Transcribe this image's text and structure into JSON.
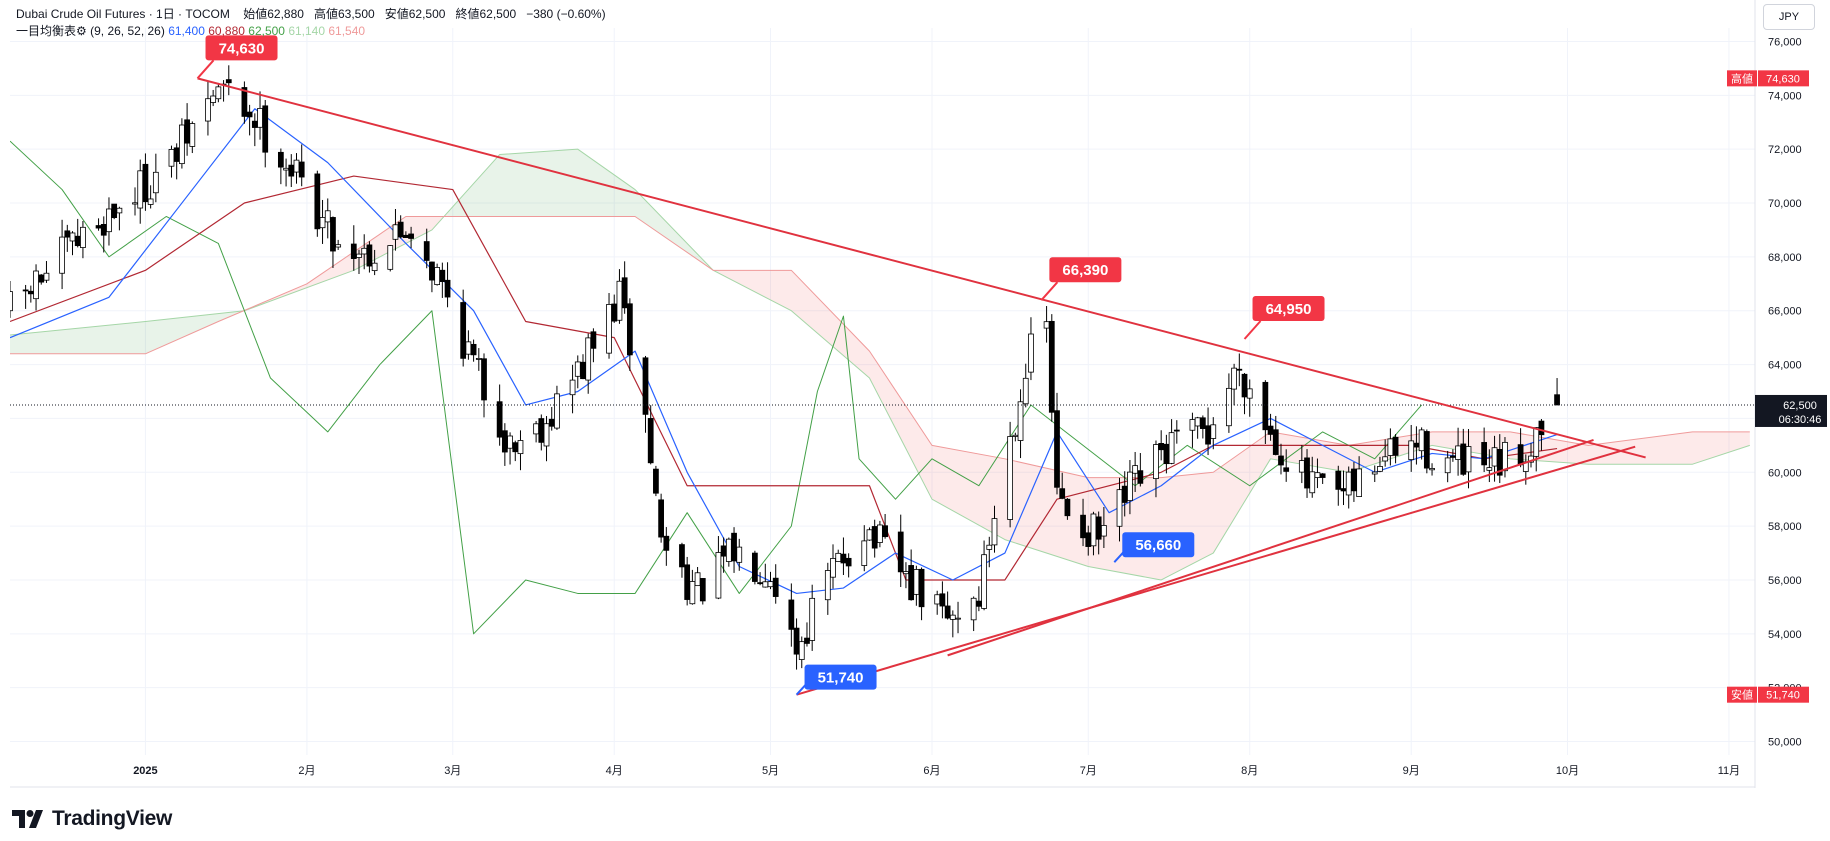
{
  "header": {
    "title": "Dubai Crude Oil Futures · 1日 · TOCOM",
    "open_label": "始値",
    "open": "62,880",
    "high_label": "高値",
    "high": "63,500",
    "low_label": "安値",
    "low": "62,500",
    "close_label": "終値",
    "close": "62,500",
    "change": "−380 (−0.60%)",
    "indicator_name": "一目均衡表",
    "indicator_params": "(9, 26, 52, 26)",
    "tenkan": "61,400",
    "kijun": "60,880",
    "chikou": "62,500",
    "span_a": "61,140",
    "span_b": "61,540"
  },
  "currency": "JPY",
  "brand": "TradingView",
  "colors": {
    "up_body": "#ffffff",
    "down_body": "#000000",
    "wick": "#000000",
    "tenkan": "#2962ff",
    "kijun": "#b22833",
    "chikou": "#43a047",
    "cloud_bull": "#43a047",
    "cloud_bear": "#ef5350",
    "trendline": "#e0323f",
    "high_callout": "#f23645",
    "low_callout": "#2962ff"
  },
  "chart_data": {
    "type": "candlestick",
    "y_ticks": [
      "76,000",
      "74,000",
      "72,000",
      "70,000",
      "68,000",
      "66,000",
      "64,000",
      "62,000",
      "60,000",
      "58,000",
      "56,000",
      "54,000",
      "52,000",
      "50,000"
    ],
    "ylim": [
      49500,
      76500
    ],
    "x_labels": [
      {
        "date": "2025-01-01",
        "label": "2025"
      },
      {
        "date": "2025-02-01",
        "label": "2月"
      },
      {
        "date": "2025-03-01",
        "label": "3月"
      },
      {
        "date": "2025-04-01",
        "label": "4月"
      },
      {
        "date": "2025-05-01",
        "label": "5月"
      },
      {
        "date": "2025-06-01",
        "label": "6月"
      },
      {
        "date": "2025-07-01",
        "label": "7月"
      },
      {
        "date": "2025-08-01",
        "label": "8月"
      },
      {
        "date": "2025-09-01",
        "label": "9月"
      },
      {
        "date": "2025-10-01",
        "label": "10月"
      },
      {
        "date": "2025-11-01",
        "label": "11月"
      }
    ],
    "xlim": [
      "2024-12-06",
      "2025-11-06"
    ],
    "price_path": [
      [
        "2024-12-06",
        66000
      ],
      [
        "2024-12-16",
        68000
      ],
      [
        "2024-12-25",
        69600
      ],
      [
        "2025-01-06",
        71500
      ],
      [
        "2025-01-15",
        74300
      ],
      [
        "2025-01-22",
        73200
      ],
      [
        "2025-01-30",
        71000
      ],
      [
        "2025-02-07",
        68500
      ],
      [
        "2025-02-14",
        68200
      ],
      [
        "2025-02-21",
        69200
      ],
      [
        "2025-02-28",
        66500
      ],
      [
        "2025-03-05",
        64000
      ],
      [
        "2025-03-12",
        61000
      ],
      [
        "2025-03-19",
        62000
      ],
      [
        "2025-03-26",
        64000
      ],
      [
        "2025-04-02",
        66500
      ],
      [
        "2025-04-07",
        62000
      ],
      [
        "2025-04-10",
        57500
      ],
      [
        "2025-04-17",
        55500
      ],
      [
        "2025-04-24",
        57000
      ],
      [
        "2025-05-01",
        56500
      ],
      [
        "2025-05-06",
        53500
      ],
      [
        "2025-05-12",
        56000
      ],
      [
        "2025-05-19",
        58000
      ],
      [
        "2025-05-27",
        56000
      ],
      [
        "2025-06-04",
        54500
      ],
      [
        "2025-06-10",
        55500
      ],
      [
        "2025-06-13",
        58500
      ],
      [
        "2025-06-19",
        64000
      ],
      [
        "2025-06-23",
        65500
      ],
      [
        "2025-06-25",
        59000
      ],
      [
        "2025-07-03",
        57500
      ],
      [
        "2025-07-10",
        59500
      ],
      [
        "2025-07-17",
        61000
      ],
      [
        "2025-07-24",
        61500
      ],
      [
        "2025-07-30",
        64000
      ],
      [
        "2025-08-05",
        61500
      ],
      [
        "2025-08-12",
        59500
      ],
      [
        "2025-08-19",
        59000
      ],
      [
        "2025-08-26",
        60500
      ],
      [
        "2025-09-02",
        61000
      ],
      [
        "2025-09-09",
        60300
      ],
      [
        "2025-09-16",
        60000
      ],
      [
        "2025-09-23",
        60800
      ],
      [
        "2025-09-26",
        62000
      ],
      [
        "2025-09-29",
        62500
      ]
    ],
    "tenkan_path": [
      [
        "2024-12-06",
        65000
      ],
      [
        "2024-12-25",
        66500
      ],
      [
        "2025-01-10",
        70500
      ],
      [
        "2025-01-22",
        73500
      ],
      [
        "2025-02-05",
        71500
      ],
      [
        "2025-02-20",
        68500
      ],
      [
        "2025-03-05",
        66000
      ],
      [
        "2025-03-15",
        62500
      ],
      [
        "2025-03-25",
        63000
      ],
      [
        "2025-04-05",
        64500
      ],
      [
        "2025-04-15",
        60000
      ],
      [
        "2025-04-25",
        56500
      ],
      [
        "2025-05-06",
        55500
      ],
      [
        "2025-05-15",
        55700
      ],
      [
        "2025-05-25",
        57000
      ],
      [
        "2025-06-05",
        56000
      ],
      [
        "2025-06-15",
        57000
      ],
      [
        "2025-06-25",
        61500
      ],
      [
        "2025-07-05",
        58500
      ],
      [
        "2025-07-15",
        59500
      ],
      [
        "2025-07-25",
        61000
      ],
      [
        "2025-08-05",
        62000
      ],
      [
        "2025-08-15",
        61000
      ],
      [
        "2025-08-25",
        60000
      ],
      [
        "2025-09-05",
        60700
      ],
      [
        "2025-09-15",
        60500
      ],
      [
        "2025-09-29",
        61400
      ]
    ],
    "kijun_path": [
      [
        "2024-12-06",
        65600
      ],
      [
        "2025-01-01",
        67500
      ],
      [
        "2025-01-20",
        70000
      ],
      [
        "2025-02-10",
        71000
      ],
      [
        "2025-03-01",
        70500
      ],
      [
        "2025-03-15",
        65600
      ],
      [
        "2025-04-01",
        65000
      ],
      [
        "2025-04-15",
        59500
      ],
      [
        "2025-05-20",
        59500
      ],
      [
        "2025-05-27",
        56000
      ],
      [
        "2025-06-15",
        56000
      ],
      [
        "2025-06-25",
        59000
      ],
      [
        "2025-07-15",
        60000
      ],
      [
        "2025-07-25",
        61000
      ],
      [
        "2025-08-15",
        61000
      ],
      [
        "2025-09-01",
        61000
      ],
      [
        "2025-09-15",
        60500
      ],
      [
        "2025-09-29",
        60880
      ]
    ],
    "chikou_path": [
      [
        "2024-12-06",
        72300
      ],
      [
        "2024-12-16",
        70500
      ],
      [
        "2024-12-25",
        68000
      ],
      [
        "2025-01-05",
        69500
      ],
      [
        "2025-01-15",
        68500
      ],
      [
        "2025-01-25",
        63500
      ],
      [
        "2025-02-05",
        61500
      ],
      [
        "2025-02-15",
        64000
      ],
      [
        "2025-02-25",
        66000
      ],
      [
        "2025-03-05",
        54000
      ],
      [
        "2025-03-15",
        56000
      ],
      [
        "2025-03-25",
        55500
      ],
      [
        "2025-04-05",
        55500
      ],
      [
        "2025-04-15",
        58500
      ],
      [
        "2025-04-25",
        55500
      ],
      [
        "2025-05-05",
        58000
      ],
      [
        "2025-05-10",
        63000
      ],
      [
        "2025-05-15",
        65800
      ],
      [
        "2025-05-18",
        60500
      ],
      [
        "2025-05-25",
        59000
      ],
      [
        "2025-06-01",
        60500
      ],
      [
        "2025-06-10",
        59500
      ],
      [
        "2025-06-20",
        62500
      ],
      [
        "2025-06-30",
        61000
      ],
      [
        "2025-07-10",
        59500
      ],
      [
        "2025-07-20",
        61000
      ],
      [
        "2025-08-01",
        59500
      ],
      [
        "2025-08-15",
        61500
      ],
      [
        "2025-08-25",
        60500
      ],
      [
        "2025-09-03",
        62500
      ]
    ],
    "span_a_path": [
      [
        "2024-12-06",
        65100
      ],
      [
        "2025-01-01",
        65600
      ],
      [
        "2025-01-20",
        66000
      ],
      [
        "2025-02-10",
        67500
      ],
      [
        "2025-02-25",
        69000
      ],
      [
        "2025-03-10",
        71800
      ],
      [
        "2025-03-25",
        72000
      ],
      [
        "2025-04-05",
        70500
      ],
      [
        "2025-04-20",
        67500
      ],
      [
        "2025-05-05",
        66000
      ],
      [
        "2025-05-20",
        63500
      ],
      [
        "2025-06-01",
        59000
      ],
      [
        "2025-06-15",
        57500
      ],
      [
        "2025-07-01",
        56500
      ],
      [
        "2025-07-15",
        56000
      ],
      [
        "2025-07-25",
        57000
      ],
      [
        "2025-08-05",
        60500
      ],
      [
        "2025-08-20",
        60000
      ],
      [
        "2025-09-05",
        61000
      ],
      [
        "2025-09-20",
        60500
      ],
      [
        "2025-10-05",
        60300
      ],
      [
        "2025-10-25",
        60300
      ],
      [
        "2025-11-05",
        61000
      ]
    ],
    "span_b_path": [
      [
        "2024-12-06",
        64400
      ],
      [
        "2025-01-01",
        64400
      ],
      [
        "2025-01-15",
        65600
      ],
      [
        "2025-02-01",
        67000
      ],
      [
        "2025-02-20",
        69500
      ],
      [
        "2025-03-10",
        69500
      ],
      [
        "2025-03-25",
        69500
      ],
      [
        "2025-04-05",
        69500
      ],
      [
        "2025-04-20",
        67500
      ],
      [
        "2025-05-05",
        67500
      ],
      [
        "2025-05-20",
        64500
      ],
      [
        "2025-06-01",
        61000
      ],
      [
        "2025-06-15",
        60500
      ],
      [
        "2025-07-01",
        59800
      ],
      [
        "2025-07-15",
        59800
      ],
      [
        "2025-07-25",
        60000
      ],
      [
        "2025-08-05",
        61500
      ],
      [
        "2025-08-20",
        61000
      ],
      [
        "2025-09-05",
        61500
      ],
      [
        "2025-09-20",
        61500
      ],
      [
        "2025-10-05",
        61000
      ],
      [
        "2025-10-25",
        61500
      ],
      [
        "2025-11-05",
        61500
      ]
    ],
    "trendlines": [
      {
        "from": [
          "2025-01-11",
          74630
        ],
        "to": [
          "2025-10-16",
          60550
        ]
      },
      {
        "from": [
          "2025-05-06",
          51740
        ],
        "to": [
          "2025-10-14",
          60950
        ]
      },
      {
        "from": [
          "2025-06-04",
          53200
        ],
        "to": [
          "2025-10-06",
          61200
        ]
      }
    ],
    "callouts": [
      {
        "label": "74,630",
        "kind": "high",
        "at": [
          "2025-01-11",
          74630
        ]
      },
      {
        "label": "66,390",
        "kind": "high",
        "at": [
          "2025-06-22",
          66390
        ]
      },
      {
        "label": "64,950",
        "kind": "high",
        "at": [
          "2025-07-31",
          64950
        ]
      },
      {
        "label": "51,740",
        "kind": "low",
        "at": [
          "2025-05-06",
          51740
        ]
      },
      {
        "label": "56,660",
        "kind": "low",
        "at": [
          "2025-07-06",
          56660
        ]
      }
    ],
    "price_tags": [
      {
        "kind": "high",
        "name": "高値",
        "value": "74,630",
        "y": 74630
      },
      {
        "kind": "current",
        "value": "62,500",
        "timer": "06:30:46",
        "y": 62500
      },
      {
        "kind": "low",
        "name": "安値",
        "value": "51,740",
        "y": 51740
      }
    ],
    "current_price": 62500
  }
}
